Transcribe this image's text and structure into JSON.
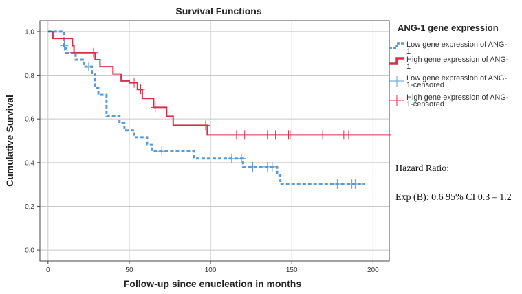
{
  "chart_data": {
    "type": "line",
    "title": "Survival Functions",
    "xlabel": "Follow-up since enucleation in months",
    "ylabel": "Cumulative Survival",
    "xlim": [
      -5,
      210
    ],
    "ylim": [
      -0.05,
      1.05
    ],
    "x_ticks": [
      0,
      50,
      100,
      150,
      200
    ],
    "y_ticks": [
      0.0,
      0.2,
      0.4,
      0.6,
      0.8,
      1.0
    ],
    "x_tick_labels": [
      "0",
      "50",
      "100",
      "150",
      "200"
    ],
    "y_tick_labels": [
      "0,0",
      "0,2",
      "0,4",
      "0,6",
      "0,8",
      "1,0"
    ],
    "grid": true,
    "legend_title": "ANG-1 gene expression",
    "legend_position": "right",
    "series": [
      {
        "name": "Low gene expression of ANG-1",
        "color": "#5b9bd5",
        "style": "dashed",
        "steps": [
          [
            0,
            1.0
          ],
          [
            5,
            1.0
          ],
          [
            10,
            0.935
          ],
          [
            11,
            0.903
          ],
          [
            17,
            0.871
          ],
          [
            22,
            0.839
          ],
          [
            27,
            0.806
          ],
          [
            29,
            0.742
          ],
          [
            31,
            0.71
          ],
          [
            36,
            0.613
          ],
          [
            44,
            0.581
          ],
          [
            47,
            0.548
          ],
          [
            53,
            0.516
          ],
          [
            61,
            0.484
          ],
          [
            64,
            0.452
          ],
          [
            90,
            0.419
          ],
          [
            118,
            0.419
          ],
          [
            120,
            0.381
          ],
          [
            141,
            0.343
          ],
          [
            143,
            0.302
          ],
          [
            195,
            0.302
          ]
        ],
        "censored": [
          [
            10,
            0.935
          ],
          [
            25,
            0.839
          ],
          [
            70,
            0.452
          ],
          [
            113,
            0.419
          ],
          [
            119,
            0.419
          ],
          [
            126,
            0.381
          ],
          [
            135,
            0.381
          ],
          [
            138,
            0.381
          ],
          [
            178,
            0.302
          ],
          [
            187,
            0.302
          ],
          [
            189,
            0.302
          ],
          [
            192,
            0.302
          ]
        ]
      },
      {
        "name": "High gene expression of ANG-1",
        "color": "#d6304a",
        "style": "solid",
        "steps": [
          [
            0,
            1.0
          ],
          [
            3,
            0.968
          ],
          [
            15,
            0.935
          ],
          [
            16,
            0.903
          ],
          [
            29,
            0.871
          ],
          [
            32,
            0.839
          ],
          [
            40,
            0.806
          ],
          [
            45,
            0.774
          ],
          [
            50,
            0.765
          ],
          [
            55,
            0.735
          ],
          [
            58,
            0.694
          ],
          [
            65,
            0.653
          ],
          [
            73,
            0.612
          ],
          [
            77,
            0.571
          ],
          [
            97,
            0.571
          ],
          [
            98,
            0.527
          ],
          [
            211,
            0.527
          ]
        ],
        "censored": [
          [
            16,
            0.903
          ],
          [
            28,
            0.903
          ],
          [
            53,
            0.765
          ],
          [
            57,
            0.735
          ],
          [
            66,
            0.653
          ],
          [
            97,
            0.571
          ],
          [
            116,
            0.527
          ],
          [
            121,
            0.527
          ],
          [
            135,
            0.527
          ],
          [
            140,
            0.527
          ],
          [
            148,
            0.527
          ],
          [
            149,
            0.527
          ],
          [
            169,
            0.527
          ],
          [
            182,
            0.527
          ],
          [
            185,
            0.527
          ]
        ]
      }
    ],
    "legend_entries": [
      {
        "line1": "Low gene expression of ANG-",
        "line2": "1",
        "color": "#5b9bd5",
        "kind": "dashed"
      },
      {
        "line1": "High gene expression of ANG-",
        "line2": "1",
        "color": "#d6304a",
        "kind": "solid"
      },
      {
        "line1": "Low gene expression of ANG-",
        "line2": "1-censored",
        "color": "#5b9bd5",
        "kind": "censor"
      },
      {
        "line1": "High gene expression of ANG-",
        "line2": "1-censored",
        "color": "#d6304a",
        "kind": "censor"
      }
    ]
  },
  "annotations": {
    "hazard_ratio_label": "Hazard Ratio:",
    "exp_b_text": "Exp (B): 0.6 95% CI 0.3 – 1.2"
  }
}
